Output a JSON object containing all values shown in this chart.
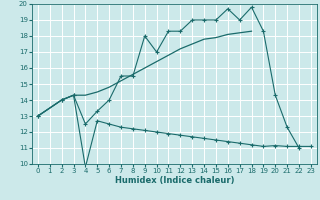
{
  "title": "",
  "xlabel": "Humidex (Indice chaleur)",
  "bg_color": "#cce9ea",
  "grid_color": "#ffffff",
  "line_color": "#1a6b6b",
  "xlim": [
    -0.5,
    23.5
  ],
  "ylim": [
    10,
    20
  ],
  "xticks": [
    0,
    1,
    2,
    3,
    4,
    5,
    6,
    7,
    8,
    9,
    10,
    11,
    12,
    13,
    14,
    15,
    16,
    17,
    18,
    19,
    20,
    21,
    22,
    23
  ],
  "yticks": [
    10,
    11,
    12,
    13,
    14,
    15,
    16,
    17,
    18,
    19,
    20
  ],
  "line1_x": [
    0,
    2,
    3,
    4,
    5,
    6,
    7,
    8,
    9,
    10,
    11,
    12,
    13,
    14,
    15,
    16,
    17,
    18,
    19,
    20,
    21,
    22
  ],
  "line1_y": [
    13,
    14,
    14.3,
    12.5,
    13.3,
    14.0,
    15.5,
    15.5,
    18.0,
    17.0,
    18.3,
    18.3,
    19.0,
    19.0,
    19.0,
    19.7,
    19.0,
    19.8,
    18.3,
    14.3,
    12.3,
    11.0
  ],
  "line2_x": [
    0,
    2,
    3,
    4,
    5,
    6,
    7,
    8,
    9,
    10,
    11,
    12,
    13,
    14,
    15,
    16,
    17,
    18
  ],
  "line2_y": [
    13,
    14,
    14.3,
    14.3,
    14.5,
    14.8,
    15.2,
    15.6,
    16.0,
    16.4,
    16.8,
    17.2,
    17.5,
    17.8,
    17.9,
    18.1,
    18.2,
    18.3
  ],
  "line3_x": [
    0,
    2,
    3,
    4,
    5,
    6,
    7,
    8,
    9,
    10,
    11,
    12,
    13,
    14,
    15,
    16,
    17,
    18,
    19,
    20,
    21,
    22,
    23
  ],
  "line3_y": [
    13,
    14,
    14.3,
    9.8,
    12.7,
    12.5,
    12.3,
    12.2,
    12.1,
    12.0,
    11.9,
    11.8,
    11.7,
    11.6,
    11.5,
    11.4,
    11.3,
    11.2,
    11.1,
    11.15,
    11.1,
    11.1,
    11.1
  ],
  "xlabel_fontsize": 6.0,
  "tick_fontsize": 5.0
}
